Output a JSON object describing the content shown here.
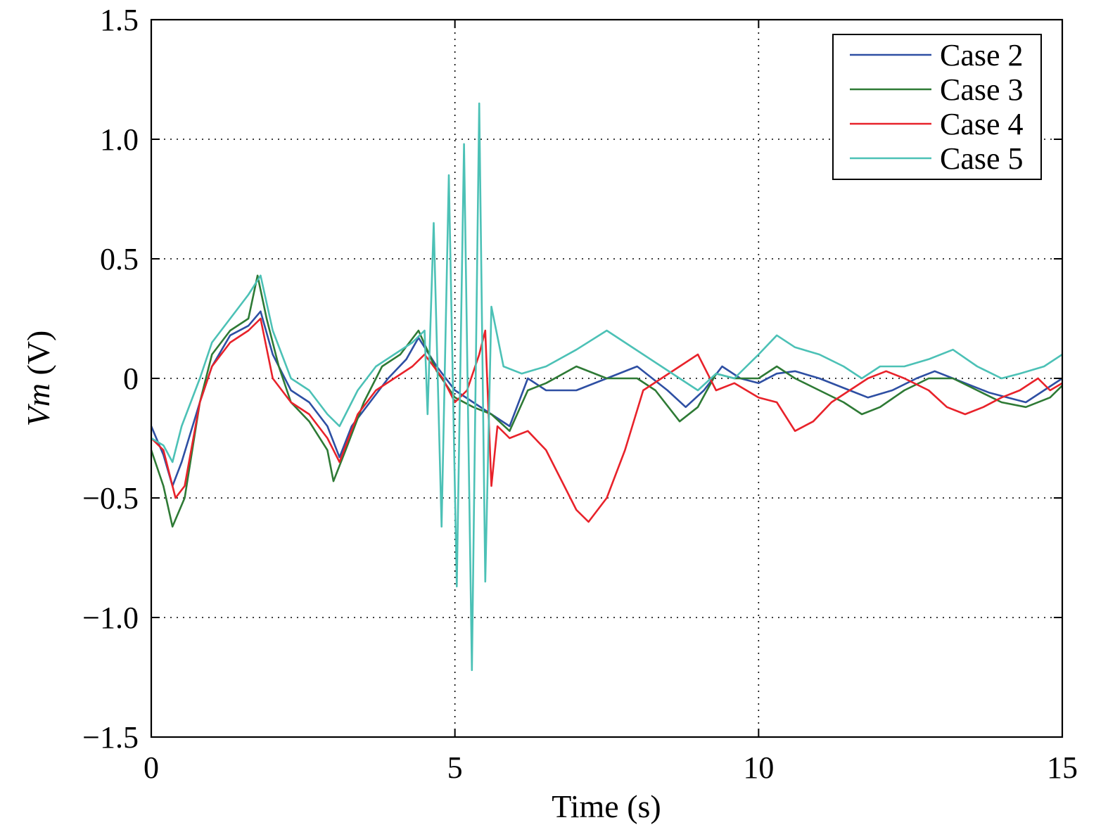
{
  "chart_data": {
    "type": "line",
    "xlabel": "Time (s)",
    "ylabel_italic": "Vm",
    "ylabel_unit": " (V)",
    "xlim": [
      0,
      15
    ],
    "ylim": [
      -1.5,
      1.5
    ],
    "x_ticks": [
      0,
      5,
      10,
      15
    ],
    "x_tick_labels": [
      "0",
      "5",
      "10",
      "15"
    ],
    "y_ticks": [
      -1.5,
      -1.0,
      -0.5,
      0,
      0.5,
      1.0,
      1.5
    ],
    "y_tick_labels": [
      "−1.5",
      "−1.0",
      "−0.5",
      "0",
      "0.5",
      "1.0",
      "1.5"
    ],
    "grid": true,
    "legend_position": "top-right",
    "series": [
      {
        "name": "Case 2",
        "color": "#2e4fa3",
        "x": [
          0,
          0.2,
          0.35,
          0.5,
          0.8,
          1.0,
          1.3,
          1.6,
          1.8,
          2.0,
          2.3,
          2.6,
          2.9,
          3.1,
          3.3,
          3.6,
          3.9,
          4.2,
          4.4,
          4.7,
          5.0,
          5.3,
          5.6,
          5.9,
          6.2,
          6.5,
          7.0,
          7.5,
          8.0,
          8.5,
          8.8,
          9.1,
          9.4,
          9.7,
          10.0,
          10.3,
          10.6,
          11.0,
          11.5,
          11.8,
          12.2,
          12.6,
          12.9,
          13.2,
          13.5,
          13.8,
          14.1,
          14.4,
          14.7,
          15.0
        ],
        "y": [
          -0.2,
          -0.32,
          -0.45,
          -0.35,
          -0.1,
          0.05,
          0.18,
          0.22,
          0.28,
          0.1,
          -0.05,
          -0.1,
          -0.2,
          -0.33,
          -0.2,
          -0.1,
          0.0,
          0.08,
          0.17,
          0.05,
          -0.05,
          -0.1,
          -0.15,
          -0.2,
          0.0,
          -0.05,
          -0.05,
          0.0,
          0.05,
          -0.05,
          -0.12,
          -0.05,
          0.05,
          0.0,
          -0.02,
          0.02,
          0.03,
          0.0,
          -0.05,
          -0.08,
          -0.05,
          0.0,
          0.03,
          0.0,
          -0.03,
          -0.06,
          -0.08,
          -0.1,
          -0.05,
          0.0
        ]
      },
      {
        "name": "Case 3",
        "color": "#2e7a35",
        "x": [
          0,
          0.2,
          0.35,
          0.55,
          0.8,
          1.0,
          1.3,
          1.6,
          1.75,
          1.9,
          2.1,
          2.3,
          2.6,
          2.9,
          3.0,
          3.2,
          3.5,
          3.8,
          4.1,
          4.4,
          4.7,
          5.0,
          5.3,
          5.6,
          5.9,
          6.2,
          6.5,
          7.0,
          7.5,
          8.0,
          8.3,
          8.7,
          9.0,
          9.3,
          9.6,
          10.0,
          10.3,
          10.6,
          11.0,
          11.4,
          11.7,
          12.0,
          12.4,
          12.8,
          13.2,
          13.6,
          14.0,
          14.4,
          14.8,
          15.0
        ],
        "y": [
          -0.3,
          -0.45,
          -0.62,
          -0.5,
          -0.1,
          0.1,
          0.2,
          0.25,
          0.43,
          0.25,
          0.05,
          -0.1,
          -0.18,
          -0.3,
          -0.43,
          -0.3,
          -0.1,
          0.05,
          0.1,
          0.2,
          0.03,
          -0.08,
          -0.12,
          -0.15,
          -0.22,
          -0.05,
          -0.02,
          0.05,
          0.0,
          0.0,
          -0.05,
          -0.18,
          -0.12,
          0.02,
          0.0,
          0.0,
          0.05,
          0.0,
          -0.05,
          -0.1,
          -0.15,
          -0.12,
          -0.05,
          0.0,
          0.0,
          -0.05,
          -0.1,
          -0.12,
          -0.08,
          -0.03
        ]
      },
      {
        "name": "Case 4",
        "color": "#e8222a",
        "x": [
          0,
          0.2,
          0.4,
          0.55,
          0.8,
          1.0,
          1.3,
          1.6,
          1.8,
          2.0,
          2.3,
          2.6,
          2.9,
          3.1,
          3.4,
          3.7,
          4.0,
          4.3,
          4.5,
          4.8,
          5.0,
          5.2,
          5.4,
          5.5,
          5.6,
          5.7,
          5.9,
          6.2,
          6.5,
          6.8,
          7.0,
          7.2,
          7.5,
          7.8,
          8.1,
          8.4,
          8.7,
          9.0,
          9.3,
          9.6,
          10.0,
          10.3,
          10.6,
          10.9,
          11.2,
          11.5,
          11.8,
          12.1,
          12.4,
          12.8,
          13.1,
          13.4,
          13.7,
          14.0,
          14.3,
          14.6,
          14.8,
          15.0
        ],
        "y": [
          -0.25,
          -0.3,
          -0.5,
          -0.45,
          -0.1,
          0.05,
          0.15,
          0.2,
          0.25,
          0.0,
          -0.1,
          -0.15,
          -0.25,
          -0.35,
          -0.15,
          -0.05,
          0.0,
          0.05,
          0.1,
          0.0,
          -0.1,
          -0.05,
          0.1,
          0.2,
          -0.45,
          -0.2,
          -0.25,
          -0.22,
          -0.3,
          -0.45,
          -0.55,
          -0.6,
          -0.5,
          -0.3,
          -0.05,
          0.0,
          0.05,
          0.1,
          -0.05,
          -0.02,
          -0.08,
          -0.1,
          -0.22,
          -0.18,
          -0.1,
          -0.05,
          0.0,
          0.03,
          0.0,
          -0.05,
          -0.12,
          -0.15,
          -0.12,
          -0.08,
          -0.05,
          0.0,
          -0.05,
          -0.02
        ]
      },
      {
        "name": "Case 5",
        "color": "#4cc1b6",
        "x": [
          0,
          0.2,
          0.35,
          0.5,
          0.8,
          1.0,
          1.3,
          1.6,
          1.8,
          2.0,
          2.3,
          2.6,
          2.9,
          3.1,
          3.4,
          3.7,
          4.0,
          4.3,
          4.5,
          4.55,
          4.65,
          4.78,
          4.9,
          5.03,
          5.15,
          5.28,
          5.4,
          5.5,
          5.6,
          5.8,
          6.1,
          6.5,
          7.0,
          7.5,
          7.8,
          8.1,
          8.4,
          8.7,
          9.0,
          9.3,
          9.6,
          10.0,
          10.3,
          10.6,
          11.0,
          11.4,
          11.7,
          12.0,
          12.4,
          12.8,
          13.2,
          13.6,
          14.0,
          14.3,
          14.7,
          15.0
        ],
        "y": [
          -0.25,
          -0.28,
          -0.35,
          -0.2,
          0.0,
          0.15,
          0.25,
          0.35,
          0.43,
          0.2,
          0.0,
          -0.05,
          -0.15,
          -0.2,
          -0.05,
          0.05,
          0.1,
          0.15,
          0.2,
          -0.15,
          0.65,
          -0.62,
          0.85,
          -0.87,
          0.98,
          -1.22,
          1.15,
          -0.85,
          0.3,
          0.05,
          0.02,
          0.05,
          0.12,
          0.2,
          0.15,
          0.1,
          0.05,
          0.0,
          -0.05,
          0.02,
          0.0,
          0.1,
          0.18,
          0.13,
          0.1,
          0.05,
          0.0,
          0.05,
          0.05,
          0.08,
          0.12,
          0.05,
          0.0,
          0.02,
          0.05,
          0.1
        ]
      }
    ]
  }
}
